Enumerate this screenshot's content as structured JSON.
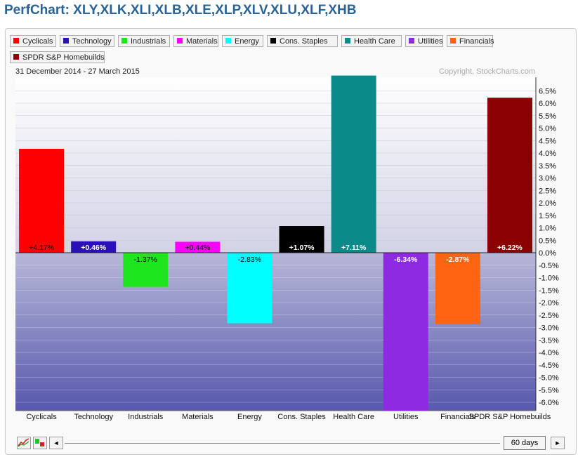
{
  "page_title": "PerfChart: XLY,XLK,XLI,XLB,XLE,XLP,XLV,XLU,XLF,XHB",
  "legend": [
    {
      "label": "Cyclicals",
      "color": "#ff0000"
    },
    {
      "label": "Technology",
      "color": "#2b10b8"
    },
    {
      "label": "Industrials",
      "color": "#1ee61e"
    },
    {
      "label": "Materials",
      "color": "#ff00ff"
    },
    {
      "label": "Energy",
      "color": "#00ffff"
    },
    {
      "label": "Cons. Staples",
      "color": "#000000"
    },
    {
      "label": "Health Care",
      "color": "#0b8a8a"
    },
    {
      "label": "Utilities",
      "color": "#8e2be2"
    },
    {
      "label": "Financials",
      "color": "#ff6410"
    },
    {
      "label": "SPDR S&P Homebuilds",
      "color": "#8b0000"
    }
  ],
  "date_range": "31 December 2014 - 27 March 2015",
  "copyright": "Copyright, StockCharts.com",
  "controls": {
    "days_label": "60 days",
    "left_arrow": "◄",
    "right_arrow": "►"
  },
  "chart_data": {
    "type": "bar",
    "categories": [
      "Cyclicals",
      "Technology",
      "Industrials",
      "Materials",
      "Energy",
      "Cons. Staples",
      "Health Care",
      "Utilities",
      "Financials",
      "SPDR S&P Homebuilds"
    ],
    "values": [
      4.17,
      0.46,
      -1.37,
      0.44,
      -2.83,
      1.07,
      7.11,
      -6.34,
      -2.87,
      6.22
    ],
    "value_labels": [
      "+4.17%",
      "+0.46%",
      "-1.37%",
      "+0.44%",
      "-2.83%",
      "+1.07%",
      "+7.11%",
      "-6.34%",
      "-2.87%",
      "+6.22%"
    ],
    "colors": [
      "#ff0000",
      "#2b10b8",
      "#1ee61e",
      "#ff00ff",
      "#00ffff",
      "#000000",
      "#0b8a8a",
      "#8e2be2",
      "#ff6410",
      "#8b0000"
    ],
    "label_colors": [
      "#000000",
      "#ffffff",
      "#000000",
      "#000000",
      "#000000",
      "#ffffff",
      "#ffffff",
      "#ffffff",
      "#ffffff",
      "#ffffff"
    ],
    "yticks": [
      6.5,
      6.0,
      5.5,
      5.0,
      4.5,
      4.0,
      3.5,
      3.0,
      2.5,
      2.0,
      1.5,
      1.0,
      0.5,
      0.0,
      -0.5,
      -1.0,
      -1.5,
      -2.0,
      -2.5,
      -3.0,
      -3.5,
      -4.0,
      -4.5,
      -5.0,
      -5.5,
      -6.0
    ],
    "ytick_labels": [
      "6.5%",
      "6.0%",
      "5.5%",
      "5.0%",
      "4.5%",
      "4.0%",
      "3.5%",
      "3.0%",
      "2.5%",
      "2.0%",
      "1.5%",
      "1.0%",
      "0.5%",
      "0.0%",
      "-0.5%",
      "-1.0%",
      "-1.5%",
      "-2.0%",
      "-2.5%",
      "-3.0%",
      "-3.5%",
      "-4.0%",
      "-4.5%",
      "-5.0%",
      "-5.5%",
      "-6.0%"
    ],
    "ylim": [
      -6.4,
      7.2
    ],
    "grid": true,
    "axis_position": "right"
  }
}
